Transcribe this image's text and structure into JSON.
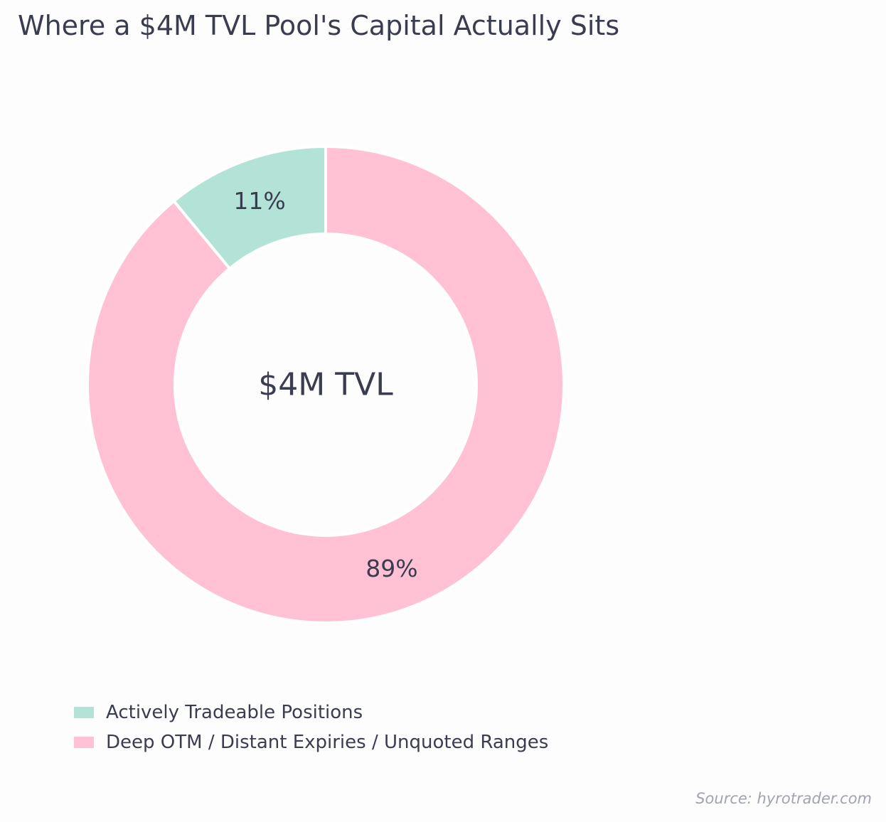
{
  "chart_data": {
    "type": "pie",
    "variant": "donut",
    "title": "Where a $4M TVL Pool's Capital Actually Sits",
    "center_label": "$4M TVL",
    "categories": [
      "Actively Tradeable Positions",
      "Deep OTM / Distant Expiries / Unquoted Ranges"
    ],
    "values": [
      11,
      89
    ],
    "value_labels": [
      "11%",
      "89%"
    ],
    "colors": [
      "#b3e3d7",
      "#ffc1d3"
    ],
    "legend_position": "bottom-left",
    "start": "top, counterclockwise"
  },
  "source": "Source: hyrotrader.com"
}
